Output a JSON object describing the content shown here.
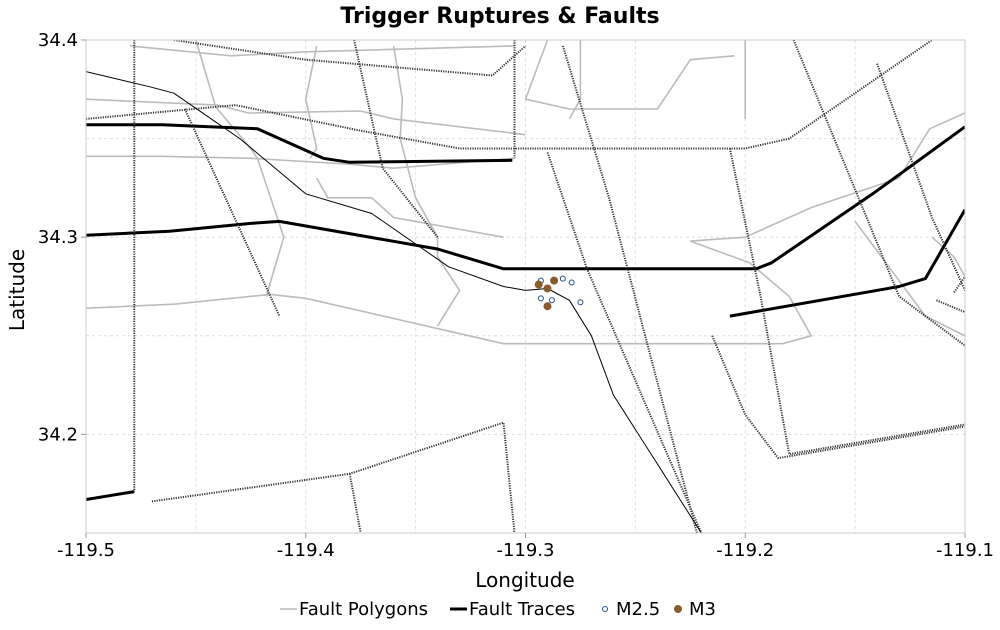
{
  "chart_data": {
    "type": "scatter",
    "title": "Trigger Ruptures & Faults",
    "xlabel": "Longitude",
    "ylabel": "Latitude",
    "xlim": [
      -119.5,
      -119.1
    ],
    "ylim": [
      34.15,
      34.4
    ],
    "xticks": [
      -119.5,
      -119.4,
      -119.3,
      -119.2,
      -119.1
    ],
    "xtick_labels": [
      "-119.5",
      "-119.4",
      "-119.3",
      "-119.2",
      "-119.1"
    ],
    "yticks": [
      34.2,
      34.3,
      34.4
    ],
    "ytick_labels": [
      "34.2",
      "34.3",
      "34.4"
    ],
    "grid": true,
    "legend_position": "bottom",
    "legend": [
      {
        "label": "Fault Polygons",
        "symbol": "line-thin",
        "color": "#bbbbbb"
      },
      {
        "label": "Fault Traces",
        "symbol": "line-thick",
        "color": "#000000"
      },
      {
        "label": "M2.5",
        "symbol": "open-circle",
        "color": "#1f4e8c"
      },
      {
        "label": "M3",
        "symbol": "filled-circle",
        "color": "#8b5a2b"
      }
    ],
    "series": [
      {
        "name": "Fault Polygons",
        "kind": "line",
        "color": "#bbbbbb",
        "lines": [
          [
            [
              -119.5,
              34.37
            ],
            [
              -119.44,
              34.367
            ],
            [
              -119.426,
              34.363
            ],
            [
              -119.375,
              34.364
            ],
            [
              -119.36,
              34.36
            ],
            [
              -119.3,
              34.352
            ]
          ],
          [
            [
              -119.5,
              34.341
            ],
            [
              -119.466,
              34.341
            ],
            [
              -119.425,
              34.34
            ],
            [
              -119.38,
              34.337
            ],
            [
              -119.36,
              34.335
            ],
            [
              -119.305,
              34.34
            ]
          ],
          [
            [
              -119.5,
              34.264
            ],
            [
              -119.46,
              34.266
            ],
            [
              -119.416,
              34.271
            ],
            [
              -119.4,
              34.269
            ],
            [
              -119.31,
              34.246
            ],
            [
              -119.183,
              34.246
            ]
          ],
          [
            [
              -119.48,
              34.397
            ],
            [
              -119.434,
              34.392
            ],
            [
              -119.4,
              34.394
            ],
            [
              -119.305,
              34.397
            ]
          ],
          [
            [
              -119.45,
              34.4
            ],
            [
              -119.441,
              34.366
            ],
            [
              -119.425,
              34.345
            ],
            [
              -119.422,
              34.34
            ],
            [
              -119.41,
              34.3
            ],
            [
              -119.418,
              34.27
            ]
          ],
          [
            [
              -119.395,
              34.397
            ],
            [
              -119.4,
              34.37
            ],
            [
              -119.395,
              34.345
            ],
            [
              -119.398,
              34.34
            ]
          ],
          [
            [
              -119.36,
              34.397
            ],
            [
              -119.356,
              34.37
            ],
            [
              -119.357,
              34.35
            ],
            [
              -119.35,
              34.32
            ],
            [
              -119.34,
              34.3
            ],
            [
              -119.34,
              34.29
            ],
            [
              -119.33,
              34.273
            ],
            [
              -119.34,
              34.255
            ]
          ],
          [
            [
              -119.395,
              34.33
            ],
            [
              -119.39,
              34.32
            ],
            [
              -119.37,
              34.32
            ],
            [
              -119.36,
              34.31
            ],
            [
              -119.31,
              34.3
            ]
          ],
          [
            [
              -119.29,
              34.4
            ],
            [
              -119.295,
              34.385
            ],
            [
              -119.3,
              34.37
            ],
            [
              -119.28,
              34.365
            ],
            [
              -119.24,
              34.365
            ],
            [
              -119.225,
              34.39
            ],
            [
              -119.205,
              34.392
            ]
          ],
          [
            [
              -119.275,
              34.4
            ],
            [
              -119.275,
              34.37
            ],
            [
              -119.28,
              34.36
            ]
          ],
          [
            [
              -119.2,
              34.4
            ],
            [
              -119.2,
              34.36
            ]
          ],
          [
            [
              -119.225,
              34.298
            ],
            [
              -119.225,
              34.298
            ],
            [
              -119.198,
              34.287
            ],
            [
              -119.18,
              34.27
            ],
            [
              -119.17,
              34.25
            ],
            [
              -119.183,
              34.246
            ]
          ],
          [
            [
              -119.1,
              34.363
            ],
            [
              -119.116,
              34.355
            ],
            [
              -119.13,
              34.33
            ],
            [
              -119.17,
              34.315
            ],
            [
              -119.2,
              34.3
            ],
            [
              -119.225,
              34.298
            ]
          ],
          [
            [
              -119.15,
              34.308
            ],
            [
              -119.142,
              34.296
            ],
            [
              -119.118,
              34.26
            ],
            [
              -119.1,
              34.25
            ]
          ],
          [
            [
              -119.115,
              34.3
            ],
            [
              -119.105,
              34.29
            ],
            [
              -119.1,
              34.28
            ]
          ]
        ]
      },
      {
        "name": "Fault Traces",
        "kind": "line",
        "color": "#000000",
        "lines": [
          [
            [
              -119.5,
              34.357
            ],
            [
              -119.465,
              34.357
            ],
            [
              -119.444,
              34.356
            ],
            [
              -119.422,
              34.355
            ],
            [
              -119.392,
              34.34
            ],
            [
              -119.38,
              34.338
            ],
            [
              -119.306,
              34.339
            ]
          ],
          [
            [
              -119.5,
              34.301
            ],
            [
              -119.462,
              34.303
            ],
            [
              -119.425,
              34.307
            ],
            [
              -119.412,
              34.308
            ],
            [
              -119.34,
              34.294
            ],
            [
              -119.31,
              34.284
            ],
            [
              -119.254,
              34.284
            ],
            [
              -119.195,
              34.284
            ],
            [
              -119.188,
              34.287
            ],
            [
              -119.142,
              34.322
            ],
            [
              -119.1,
              34.356
            ]
          ],
          [
            [
              -119.207,
              34.26
            ],
            [
              -119.13,
              34.275
            ],
            [
              -119.118,
              34.279
            ],
            [
              -119.1,
              34.314
            ]
          ],
          [
            [
              -119.5,
              34.167
            ],
            [
              -119.478,
              34.171
            ]
          ]
        ]
      },
      {
        "name": "Fault Sections",
        "kind": "line",
        "color": "#333333",
        "lines": [
          [
            [
              -119.478,
              34.4
            ],
            [
              -119.478,
              34.171
            ]
          ],
          [
            [
              -119.455,
              34.365
            ],
            [
              -119.412,
              34.26
            ]
          ],
          [
            [
              -119.378,
              34.4
            ],
            [
              -119.365,
              34.335
            ],
            [
              -119.34,
              34.3
            ]
          ],
          [
            [
              -119.46,
              34.4
            ],
            [
              -119.4,
              34.39
            ],
            [
              -119.315,
              34.382
            ],
            [
              -119.3,
              34.397
            ]
          ],
          [
            [
              -119.305,
              34.4
            ],
            [
              -119.305,
              34.34
            ]
          ],
          [
            [
              -119.5,
              34.36
            ],
            [
              -119.432,
              34.367
            ],
            [
              -119.375,
              34.354
            ],
            [
              -119.33,
              34.345
            ],
            [
              -119.2,
              34.345
            ],
            [
              -119.18,
              34.35
            ],
            [
              -119.115,
              34.4
            ]
          ],
          [
            [
              -119.29,
              34.343
            ],
            [
              -119.272,
              34.284
            ],
            [
              -119.22,
              34.15
            ]
          ],
          [
            [
              -119.283,
              34.397
            ],
            [
              -119.262,
              34.32
            ],
            [
              -119.222,
              34.15
            ]
          ],
          [
            [
              -119.207,
              34.345
            ],
            [
              -119.193,
              34.27
            ],
            [
              -119.18,
              34.19
            ],
            [
              -119.1,
              34.205
            ]
          ],
          [
            [
              -119.178,
              34.4
            ],
            [
              -119.13,
              34.27
            ],
            [
              -119.1,
              34.245
            ]
          ],
          [
            [
              -119.14,
              34.388
            ],
            [
              -119.115,
              34.31
            ],
            [
              -119.05,
              34.15
            ]
          ],
          [
            [
              -119.105,
              34.272
            ],
            [
              -119.1,
              34.28
            ]
          ],
          [
            [
              -119.215,
              34.25
            ],
            [
              -119.2,
              34.21
            ],
            [
              -119.185,
              34.188
            ],
            [
              -119.1,
              34.204
            ]
          ],
          [
            [
              -119.47,
              34.166
            ],
            [
              -119.38,
              34.18
            ],
            [
              -119.31,
              34.206
            ],
            [
              -119.305,
              34.15
            ]
          ],
          [
            [
              -119.38,
              34.18
            ],
            [
              -119.375,
              34.15
            ]
          ],
          [
            [
              -119.113,
              34.268
            ],
            [
              -119.1,
              34.262
            ]
          ]
        ]
      },
      {
        "name": "Rupture Trace",
        "kind": "line",
        "color": "#000000",
        "lines": [
          [
            [
              -119.5,
              34.384
            ],
            [
              -119.47,
              34.376
            ],
            [
              -119.46,
              34.373
            ],
            [
              -119.43,
              34.35
            ],
            [
              -119.4,
              34.322
            ],
            [
              -119.37,
              34.312
            ],
            [
              -119.335,
              34.285
            ],
            [
              -119.31,
              34.275
            ],
            [
              -119.3,
              34.273
            ],
            [
              -119.29,
              34.274
            ],
            [
              -119.28,
              34.268
            ],
            [
              -119.27,
              34.25
            ],
            [
              -119.26,
              34.22
            ],
            [
              -119.24,
              34.185
            ],
            [
              -119.22,
              34.15
            ]
          ]
        ]
      },
      {
        "name": "M2.5",
        "kind": "scatter",
        "color": "#1f4e8c",
        "points": [
          [
            -119.293,
            34.278
          ],
          [
            -119.283,
            34.279
          ],
          [
            -119.279,
            34.277
          ],
          [
            -119.293,
            34.269
          ],
          [
            -119.288,
            34.268
          ],
          [
            -119.275,
            34.267
          ]
        ]
      },
      {
        "name": "M3",
        "kind": "scatter",
        "color": "#8b5a2b",
        "points": [
          [
            -119.287,
            34.278
          ],
          [
            -119.294,
            34.276
          ],
          [
            -119.29,
            34.274
          ],
          [
            -119.29,
            34.265
          ]
        ]
      }
    ]
  }
}
